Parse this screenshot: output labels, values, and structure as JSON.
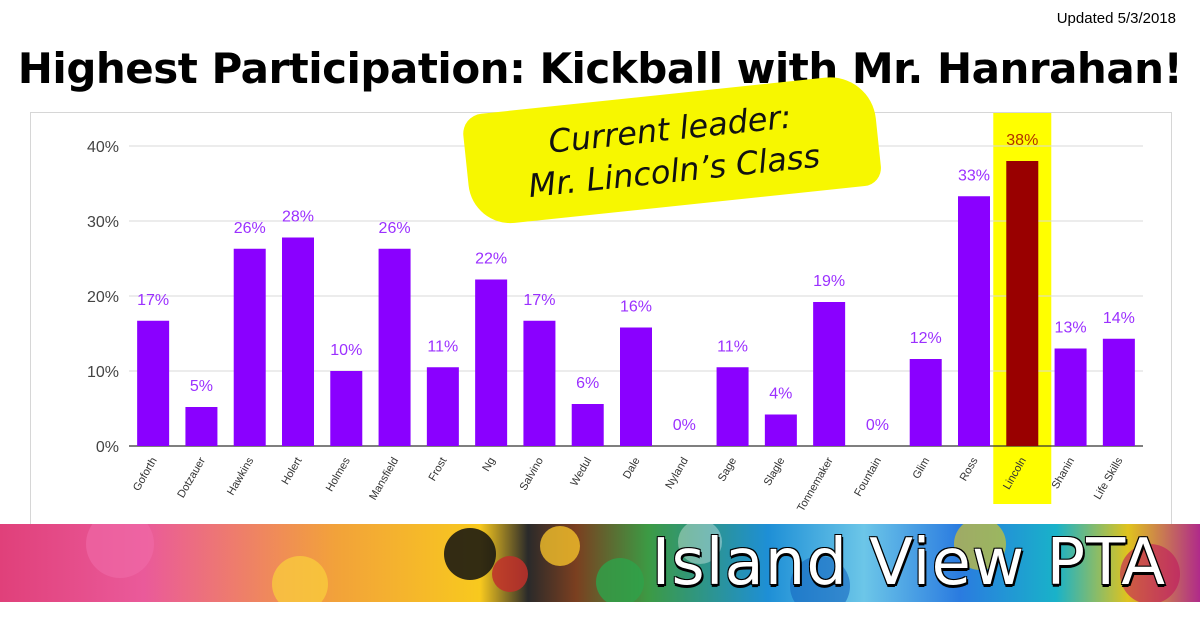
{
  "updated": "Updated 5/3/2018",
  "title": "Highest Participation: Kickball with Mr. Hanrahan!",
  "callout": {
    "line1": "Current leader:",
    "line2": "Mr. Lincoln’s Class"
  },
  "banner": {
    "title": "Island View PTA"
  },
  "colors": {
    "bar": "#8a00ff",
    "highlight_bar": "#990000",
    "highlight_band": "#ffff00",
    "label": "#9b30ff",
    "highlight_label": "#b03000"
  },
  "chart_data": {
    "type": "bar",
    "categories": [
      "Goforth",
      "Dotzauer",
      "Hawkins",
      "Holert",
      "Holmes",
      "Mansfield",
      "Frost",
      "Ng",
      "Salvino",
      "Wedul",
      "Dale",
      "Nyland",
      "Sage",
      "Slagle",
      "Tonnemaker",
      "Fountain",
      "Glim",
      "Ross",
      "Lincoln",
      "Shanin",
      "Life Skills"
    ],
    "values": [
      16.7,
      5.2,
      26.3,
      27.8,
      10.0,
      26.3,
      10.5,
      22.2,
      16.7,
      5.6,
      15.8,
      0,
      10.5,
      4.2,
      19.2,
      0,
      11.6,
      33.3,
      38.0,
      13.0,
      14.3
    ],
    "data_labels": [
      "17%",
      "5%",
      "26%",
      "28%",
      "10%",
      "26%",
      "11%",
      "22%",
      "17%",
      "6%",
      "16%",
      "0%",
      "11%",
      "4%",
      "19%",
      "0%",
      "12%",
      "33%",
      "38%",
      "13%",
      "14%"
    ],
    "highlight_index": 18,
    "y_ticks": [
      0,
      10,
      20,
      30,
      40
    ],
    "y_tick_labels": [
      "0%",
      "10%",
      "20%",
      "30%",
      "40%"
    ],
    "ylim": [
      0,
      40
    ],
    "grid": true
  }
}
